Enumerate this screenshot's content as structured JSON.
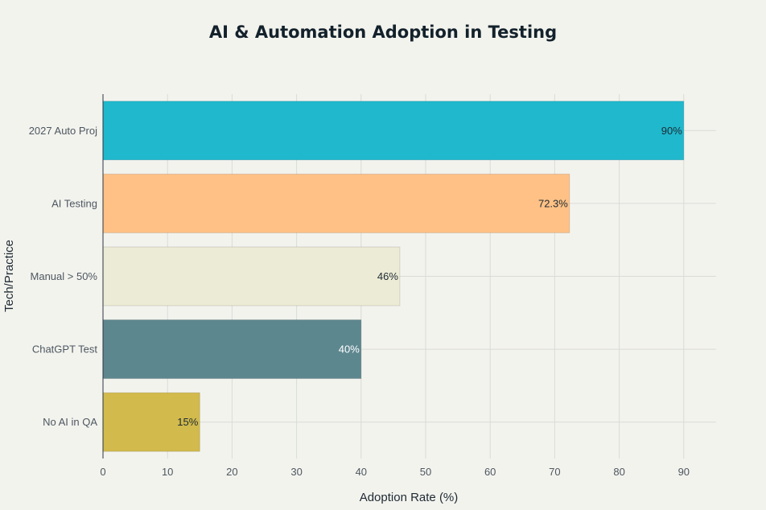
{
  "chart_data": {
    "type": "bar",
    "orientation": "horizontal",
    "title": "AI & Automation Adoption in Testing",
    "xlabel": "Adoption Rate (%)",
    "ylabel": "Tech/Practice",
    "xlim": [
      0,
      95
    ],
    "xticks": [
      0,
      10,
      20,
      30,
      40,
      50,
      60,
      70,
      80,
      90
    ],
    "grid": true,
    "categories": [
      "2027 Auto Proj",
      "AI Testing",
      "Manual > 50%",
      "ChatGPT Test",
      "No AI in QA"
    ],
    "values": [
      90,
      72.3,
      46,
      40,
      15
    ],
    "value_labels": [
      "90%",
      "72.3%",
      "46%",
      "40%",
      "15%"
    ],
    "colors": [
      "#1fb8cd",
      "#ffc185",
      "#ecebd5",
      "#5d878f",
      "#d2ba4c"
    ],
    "label_colors": [
      "#1e2a33",
      "#1e2a33",
      "#1e2a33",
      "#ffffff",
      "#1e2a33"
    ]
  }
}
